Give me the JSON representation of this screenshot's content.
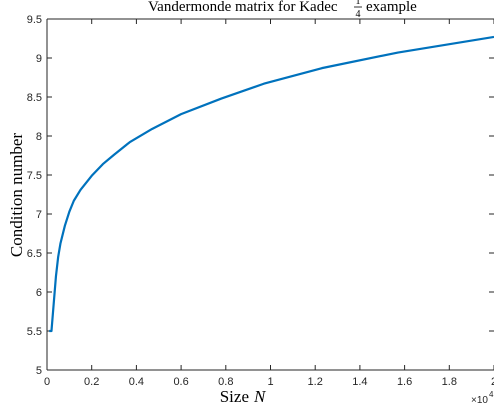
{
  "chart_data": {
    "type": "line",
    "title": "Vandermonde matrix for Kadec",
    "title_fraction": {
      "numerator": "1",
      "denominator": "4"
    },
    "title_suffix": "example",
    "xlabel": "Size",
    "xlabel_var": "N",
    "ylabel": "Condition number",
    "x_exponent_label": "×10",
    "x_exponent_power": "4",
    "xlim": [
      0,
      2.0
    ],
    "ylim": [
      5,
      9.5
    ],
    "xticks": [
      0,
      0.2,
      0.4,
      0.6,
      0.8,
      1.0,
      1.2,
      1.4,
      1.6,
      1.8,
      2.0
    ],
    "xtick_labels": [
      "0",
      "0.2",
      "0.4",
      "0.6",
      "0.8",
      "1",
      "1.2",
      "1.4",
      "1.6",
      "1.8",
      "2"
    ],
    "yticks": [
      5,
      5.5,
      6,
      6.5,
      7,
      7.5,
      8,
      8.5,
      9,
      9.5
    ],
    "ytick_labels": [
      "5",
      "5.5",
      "6",
      "6.5",
      "7",
      "7.5",
      "8",
      "8.5",
      "9",
      "9.5"
    ],
    "grid": false,
    "line_color": "#0072BD",
    "series": [
      {
        "x": [
          0.01,
          0.02,
          0.03,
          0.04,
          0.05,
          0.06,
          0.08,
          0.1,
          0.12,
          0.15,
          0.2,
          0.25,
          0.3,
          0.37,
          0.47,
          0.6,
          0.78,
          0.97,
          1.23,
          1.57,
          2.0
        ],
        "y": [
          5.5,
          5.5,
          5.85,
          6.2,
          6.45,
          6.62,
          6.85,
          7.03,
          7.17,
          7.31,
          7.49,
          7.64,
          7.76,
          7.92,
          8.09,
          8.28,
          8.48,
          8.67,
          8.87,
          9.07,
          9.27
        ]
      }
    ]
  }
}
